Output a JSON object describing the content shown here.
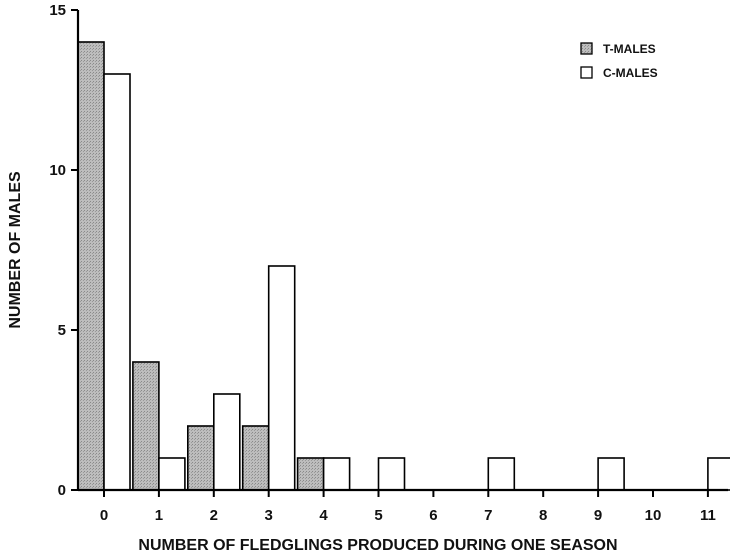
{
  "chart_data": {
    "type": "bar",
    "categories": [
      "0",
      "1",
      "2",
      "3",
      "4",
      "5",
      "6",
      "7",
      "8",
      "9",
      "10",
      "11"
    ],
    "series": [
      {
        "name": "T-MALES",
        "values": [
          14,
          4,
          2,
          2,
          1,
          0,
          0,
          0,
          0,
          0,
          0,
          0
        ],
        "color": "#b3b3b3"
      },
      {
        "name": "C-MALES",
        "values": [
          13,
          1,
          3,
          7,
          1,
          1,
          0,
          1,
          0,
          1,
          0,
          1
        ],
        "color": "#ffffff"
      }
    ],
    "xlabel": "NUMBER OF FLEDGLINGS PRODUCED DURING ONE SEASON",
    "ylabel": "NUMBER OF MALES",
    "ylim": [
      0,
      15
    ],
    "yticks": [
      0,
      5,
      10,
      15
    ],
    "legend": "top-right",
    "grid": false
  }
}
